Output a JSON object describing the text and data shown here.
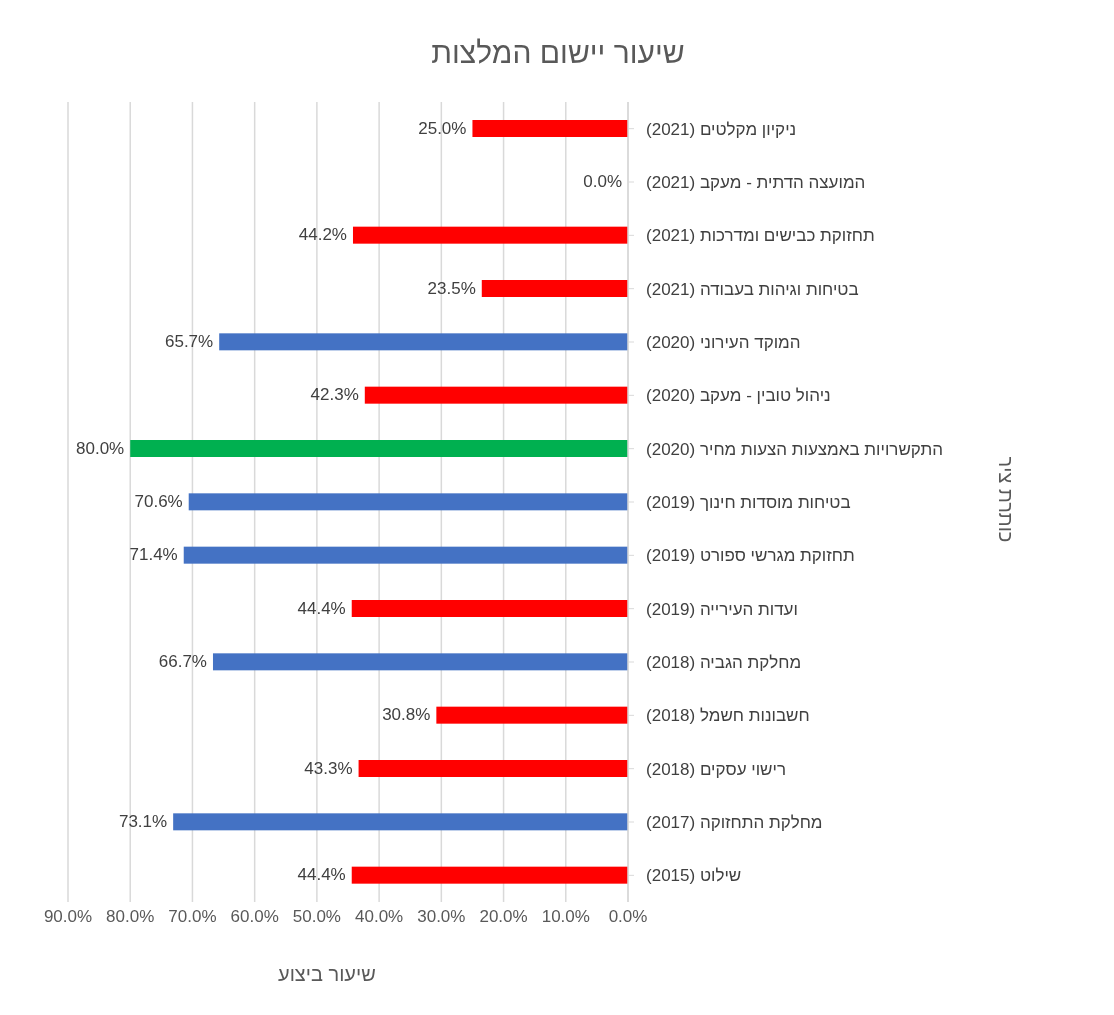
{
  "chart_data": {
    "type": "bar",
    "orientation": "horizontal",
    "title": "שיעור יישום המלצות",
    "xlabel": "שיעור ביצוע",
    "ylabel": "כותרת ציר",
    "categories": [
      "ניקיון מקלטים (2021)",
      "המועצה הדתית - מעקב (2021)",
      "תחזוקת כבישים ומדרכות (2021)",
      "בטיחות וגיהות בעבודה (2021)",
      "המוקד העירוני (2020)",
      "ניהול טובין - מעקב (2020)",
      "התקשרויות באמצעות הצעות מחיר (2020)",
      "בטיחות מוסדות חינוך (2019)",
      "תחזוקת מגרשי ספורט (2019)",
      "ועדות העירייה (2019)",
      "מחלקת הגביה (2018)",
      "חשבונות חשמל (2018)",
      "רישוי עסקים (2018)",
      "מחלקת התחזוקה (2017)",
      "שילוט (2015)"
    ],
    "values": [
      25.0,
      0.0,
      44.2,
      23.5,
      65.7,
      42.3,
      80.0,
      70.6,
      71.4,
      44.4,
      66.7,
      30.8,
      43.3,
      73.1,
      44.4
    ],
    "value_labels": [
      "25.0%",
      "0.0%",
      "44.2%",
      "23.5%",
      "65.7%",
      "42.3%",
      "80.0%",
      "70.6%",
      "71.4%",
      "44.4%",
      "66.7%",
      "30.8%",
      "43.3%",
      "73.1%",
      "44.4%"
    ],
    "colors": [
      "#ff0000",
      "#ff0000",
      "#ff0000",
      "#ff0000",
      "#4472c4",
      "#ff0000",
      "#00b050",
      "#4472c4",
      "#4472c4",
      "#ff0000",
      "#4472c4",
      "#ff0000",
      "#ff0000",
      "#4472c4",
      "#ff0000"
    ],
    "xlim": [
      90,
      0
    ],
    "xticks": [
      {
        "value": 90,
        "label": "90.0%"
      },
      {
        "value": 80,
        "label": "80.0%"
      },
      {
        "value": 70,
        "label": "70.0%"
      },
      {
        "value": 60,
        "label": "60.0%"
      },
      {
        "value": 50,
        "label": "50.0%"
      },
      {
        "value": 40,
        "label": "40.0%"
      },
      {
        "value": 30,
        "label": "30.0%"
      },
      {
        "value": 20,
        "label": "20.0%"
      },
      {
        "value": 10,
        "label": "10.0%"
      },
      {
        "value": 0,
        "label": "0.0%"
      }
    ],
    "grid": "x"
  }
}
